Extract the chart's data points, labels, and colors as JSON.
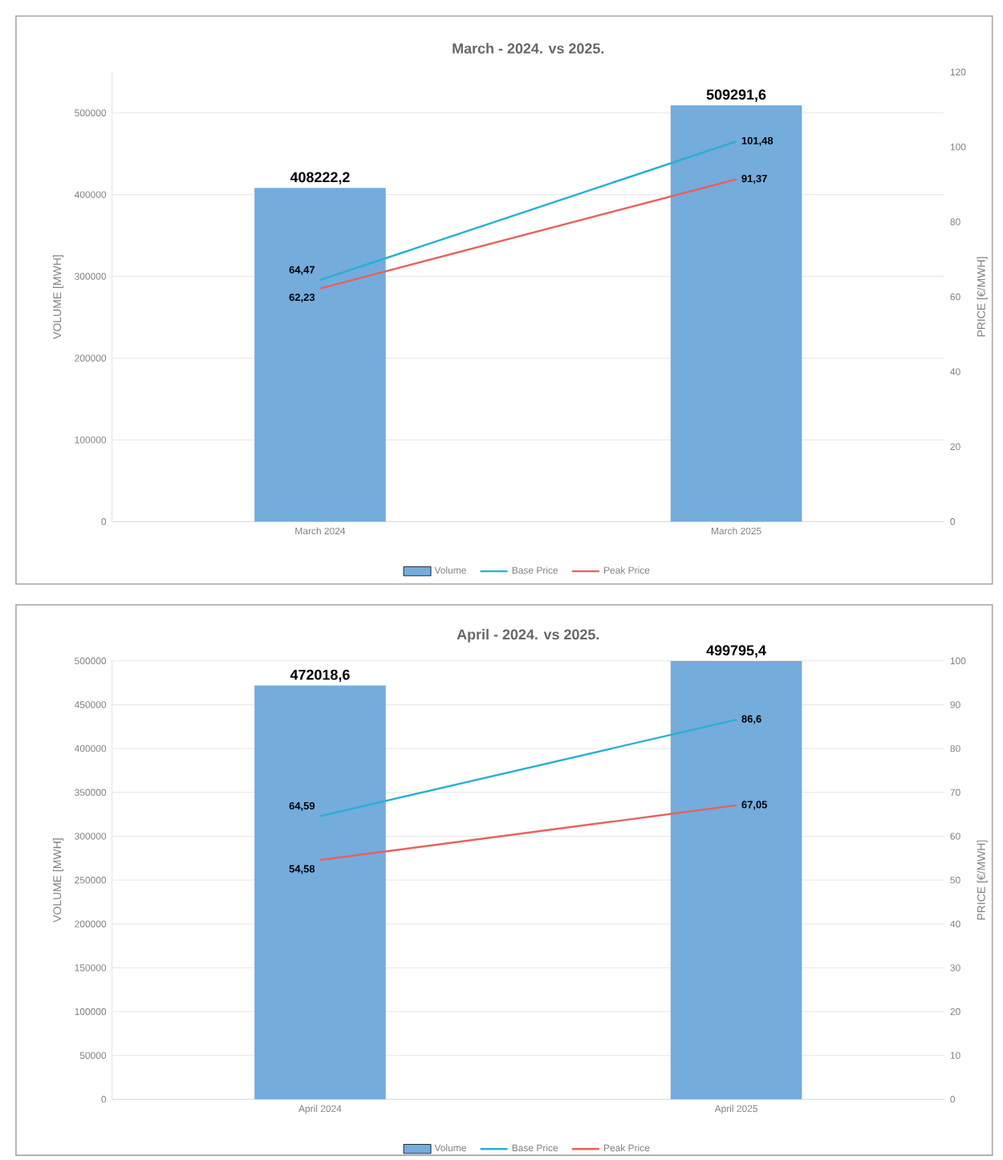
{
  "chart_data": [
    {
      "type": "bar",
      "title": "March - 2024. vs 2025.",
      "ylabel": "VOLUME [MWH]",
      "y2label": "PRICE [€/MWH]",
      "categories": [
        "March 2024",
        "March 2025"
      ],
      "series": [
        {
          "name": "Volume",
          "type": "bar",
          "color": "#74acdc",
          "values": [
            408222.2,
            509291.6
          ],
          "value_labels": [
            "408222,2",
            "509291,6"
          ]
        },
        {
          "name": "Base Price",
          "type": "line",
          "axis": "y2",
          "color": "#27b1d2",
          "values": [
            64.47,
            101.48
          ],
          "value_labels": [
            "64,47",
            "101,48"
          ]
        },
        {
          "name": "Peak Price",
          "type": "line",
          "axis": "y2",
          "color": "#e8625c",
          "values": [
            62.23,
            91.37
          ],
          "value_labels": [
            "62,23",
            "91,37"
          ]
        }
      ],
      "ylim": [
        0,
        550000
      ],
      "yticks": [
        0,
        100000,
        200000,
        300000,
        400000,
        500000
      ],
      "y2lim": [
        0,
        120
      ],
      "y2ticks": [
        0,
        20,
        40,
        60,
        80,
        100,
        120
      ],
      "grid": "y",
      "legend": "bottom"
    },
    {
      "type": "bar",
      "title": "April - 2024. vs 2025.",
      "ylabel": "VOLUME [MWH]",
      "y2label": "PRICE [€/MWH]",
      "categories": [
        "April 2024",
        "April 2025"
      ],
      "series": [
        {
          "name": "Volume",
          "type": "bar",
          "color": "#74acdc",
          "values": [
            472018.6,
            499795.4
          ],
          "value_labels": [
            "472018,6",
            "499795,4"
          ]
        },
        {
          "name": "Base Price",
          "type": "line",
          "axis": "y2",
          "color": "#27b1d2",
          "values": [
            64.59,
            86.6
          ],
          "value_labels": [
            "64,59",
            "86,6"
          ]
        },
        {
          "name": "Peak Price",
          "type": "line",
          "axis": "y2",
          "color": "#e8625c",
          "values": [
            54.58,
            67.05
          ],
          "value_labels": [
            "54,58",
            "67,05"
          ]
        }
      ],
      "ylim": [
        0,
        500000
      ],
      "yticks": [
        0,
        50000,
        100000,
        150000,
        200000,
        250000,
        300000,
        350000,
        400000,
        450000,
        500000
      ],
      "y2lim": [
        0,
        100
      ],
      "y2ticks": [
        0,
        10,
        20,
        30,
        40,
        50,
        60,
        70,
        80,
        90,
        100
      ],
      "grid": "y",
      "legend": "bottom"
    }
  ]
}
